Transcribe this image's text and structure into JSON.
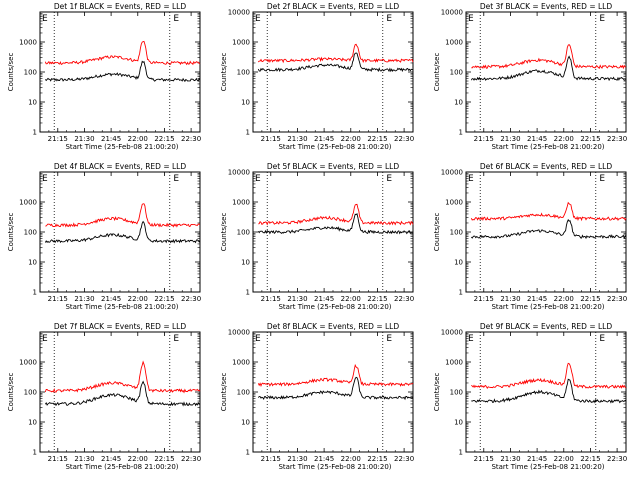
{
  "chart_data": [
    {
      "type": "line",
      "title": "Det 1f BLACK = Events, RED = LLD",
      "xlabel": "Start Time (25-Feb-08 21:00:20)",
      "ylabel": "Counts/sec",
      "yscale": "log",
      "ylim": [
        1,
        10000
      ],
      "yticks": [
        "1",
        "10",
        "100",
        "1000"
      ],
      "xticks": [
        "21:15",
        "21:30",
        "21:45",
        "22:00",
        "22:15",
        "22:30"
      ],
      "corner_marks": [
        "E",
        "E"
      ],
      "series": [
        {
          "name": "BLACK",
          "color": "#000000",
          "base": 55,
          "bump": 85,
          "peak": 220
        },
        {
          "name": "RED",
          "color": "#ff0000",
          "base": 200,
          "bump": 320,
          "peak": 1100
        }
      ]
    },
    {
      "type": "line",
      "title": "Det 2f BLACK = Events, RED = LLD",
      "xlabel": "Start Time (25-Feb-08 21:00:20)",
      "ylabel": "Counts/sec",
      "yscale": "log",
      "ylim": [
        1,
        10000
      ],
      "yticks": [
        "1",
        "10",
        "100",
        "1000",
        "10000"
      ],
      "xticks": [
        "21:15",
        "21:30",
        "21:45",
        "22:00",
        "22:15",
        "22:30"
      ],
      "corner_marks": [
        "E",
        "E"
      ],
      "series": [
        {
          "name": "BLACK",
          "color": "#000000",
          "base": 120,
          "bump": 170,
          "peak": 450
        },
        {
          "name": "RED",
          "color": "#ff0000",
          "base": 240,
          "bump": 270,
          "peak": 850
        }
      ]
    },
    {
      "type": "line",
      "title": "Det 3f BLACK = Events, RED = LLD",
      "xlabel": "Start Time (25-Feb-08 21:00:20)",
      "ylabel": "Counts/sec",
      "yscale": "log",
      "ylim": [
        1,
        10000
      ],
      "yticks": [
        "1",
        "10",
        "100",
        "1000",
        "10000"
      ],
      "xticks": [
        "21:15",
        "21:30",
        "21:45",
        "22:00",
        "22:15",
        "22:30"
      ],
      "corner_marks": [
        "E",
        "E"
      ],
      "series": [
        {
          "name": "BLACK",
          "color": "#000000",
          "base": 60,
          "bump": 110,
          "peak": 300
        },
        {
          "name": "RED",
          "color": "#ff0000",
          "base": 150,
          "bump": 250,
          "peak": 800
        }
      ]
    },
    {
      "type": "line",
      "title": "Det 4f BLACK = Events, RED = LLD",
      "xlabel": "Start Time (25-Feb-08 21:00:20)",
      "ylabel": "Counts/sec",
      "yscale": "log",
      "ylim": [
        1,
        10000
      ],
      "yticks": [
        "1",
        "10",
        "100",
        "1000"
      ],
      "xticks": [
        "21:15",
        "21:30",
        "21:45",
        "22:00",
        "22:15",
        "22:30"
      ],
      "corner_marks": [
        "E",
        "E"
      ],
      "series": [
        {
          "name": "BLACK",
          "color": "#000000",
          "base": 50,
          "bump": 80,
          "peak": 200
        },
        {
          "name": "RED",
          "color": "#ff0000",
          "base": 170,
          "bump": 280,
          "peak": 900
        }
      ]
    },
    {
      "type": "line",
      "title": "Det 5f BLACK = Events, RED = LLD",
      "xlabel": "Start Time (25-Feb-08 21:00:20)",
      "ylabel": "Counts/sec",
      "yscale": "log",
      "ylim": [
        1,
        10000
      ],
      "yticks": [
        "1",
        "10",
        "100",
        "1000",
        "10000"
      ],
      "xticks": [
        "21:15",
        "21:30",
        "21:45",
        "22:00",
        "22:15",
        "22:30"
      ],
      "corner_marks": [
        "E",
        "E"
      ],
      "series": [
        {
          "name": "BLACK",
          "color": "#000000",
          "base": 100,
          "bump": 140,
          "peak": 400
        },
        {
          "name": "RED",
          "color": "#ff0000",
          "base": 200,
          "bump": 300,
          "peak": 800
        }
      ]
    },
    {
      "type": "line",
      "title": "Det 6f BLACK = Events, RED = LLD",
      "xlabel": "Start Time (25-Feb-08 21:00:20)",
      "ylabel": "Counts/sec",
      "yscale": "log",
      "ylim": [
        1,
        10000
      ],
      "yticks": [
        "1",
        "10",
        "100",
        "1000",
        "10000"
      ],
      "xticks": [
        "21:15",
        "21:30",
        "21:45",
        "22:00",
        "22:15",
        "22:30"
      ],
      "corner_marks": [
        "E",
        "E"
      ],
      "series": [
        {
          "name": "BLACK",
          "color": "#000000",
          "base": 70,
          "bump": 110,
          "peak": 250
        },
        {
          "name": "RED",
          "color": "#ff0000",
          "base": 280,
          "bump": 380,
          "peak": 950
        }
      ]
    },
    {
      "type": "line",
      "title": "Det 7f BLACK = Events, RED = LLD",
      "xlabel": "Start Time (25-Feb-08 21:00:20)",
      "ylabel": "Counts/sec",
      "yscale": "log",
      "ylim": [
        1,
        10000
      ],
      "yticks": [
        "1",
        "10",
        "100",
        "1000"
      ],
      "xticks": [
        "21:15",
        "21:30",
        "21:45",
        "22:00",
        "22:15",
        "22:30"
      ],
      "corner_marks": [
        "E",
        "E"
      ],
      "series": [
        {
          "name": "BLACK",
          "color": "#000000",
          "base": 40,
          "bump": 80,
          "peak": 200
        },
        {
          "name": "RED",
          "color": "#ff0000",
          "base": 110,
          "bump": 200,
          "peak": 900
        }
      ]
    },
    {
      "type": "line",
      "title": "Det 8f BLACK = Events, RED = LLD",
      "xlabel": "Start Time (25-Feb-08 21:00:20)",
      "ylabel": "Counts/sec",
      "yscale": "log",
      "ylim": [
        1,
        10000
      ],
      "yticks": [
        "1",
        "10",
        "100",
        "1000",
        "10000"
      ],
      "xticks": [
        "21:15",
        "21:30",
        "21:45",
        "22:00",
        "22:15",
        "22:30"
      ],
      "corner_marks": [
        "E",
        "E"
      ],
      "series": [
        {
          "name": "BLACK",
          "color": "#000000",
          "base": 65,
          "bump": 100,
          "peak": 300
        },
        {
          "name": "RED",
          "color": "#ff0000",
          "base": 180,
          "bump": 260,
          "peak": 750
        }
      ]
    },
    {
      "type": "line",
      "title": "Det 9f BLACK = Events, RED = LLD",
      "xlabel": "Start Time (25-Feb-08 21:00:20)",
      "ylabel": "Counts/sec",
      "yscale": "log",
      "ylim": [
        1,
        10000
      ],
      "yticks": [
        "1",
        "10",
        "100",
        "1000",
        "10000"
      ],
      "xticks": [
        "21:15",
        "21:30",
        "21:45",
        "22:00",
        "22:15",
        "22:30"
      ],
      "corner_marks": [
        "E",
        "E"
      ],
      "series": [
        {
          "name": "BLACK",
          "color": "#000000",
          "base": 50,
          "bump": 100,
          "peak": 250
        },
        {
          "name": "RED",
          "color": "#ff0000",
          "base": 150,
          "bump": 250,
          "peak": 900
        }
      ]
    }
  ]
}
